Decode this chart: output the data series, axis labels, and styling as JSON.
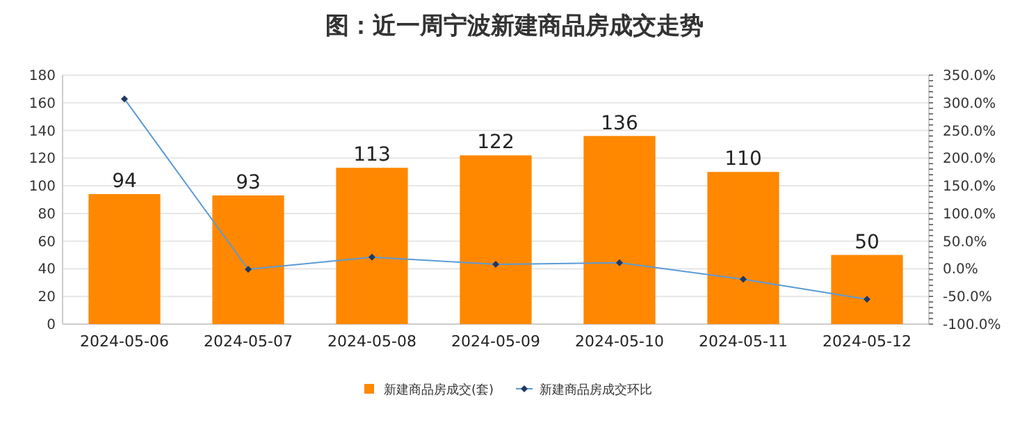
{
  "chart_data": {
    "type": "bar",
    "title": "图：近一周宁波新建商品房成交走势",
    "categories": [
      "2024-05-06",
      "2024-05-07",
      "2024-05-08",
      "2024-05-09",
      "2024-05-10",
      "2024-05-11",
      "2024-05-12"
    ],
    "series": [
      {
        "name": "新建商品房成交(套)",
        "color": "#ff8800",
        "values": [
          94,
          93,
          113,
          122,
          136,
          110,
          50
        ],
        "value_labels": [
          "94",
          "93",
          "113",
          "122",
          "136",
          "110",
          "50"
        ]
      },
      {
        "name": "新建商品房成交环比",
        "type": "line",
        "axis": "y2",
        "color": "#5b9bd5",
        "marker": "diamond",
        "values": [
          307,
          -1,
          21,
          8,
          11,
          -19,
          -55
        ]
      }
    ],
    "ylim": [
      0,
      180
    ],
    "yticks": [
      0,
      20,
      40,
      60,
      80,
      100,
      120,
      140,
      160,
      180
    ],
    "y2lim": [
      -100,
      350
    ],
    "y2ticks": [
      {
        "value": -100,
        "label": "-100.0%"
      },
      {
        "value": -50,
        "label": "-50.0%"
      },
      {
        "value": 0,
        "label": "0.0%"
      },
      {
        "value": 50,
        "label": "50.0%"
      },
      {
        "value": 100,
        "label": "100.0%"
      },
      {
        "value": 150,
        "label": "150.0%"
      },
      {
        "value": 200,
        "label": "200.0%"
      },
      {
        "value": 250,
        "label": "250.0%"
      },
      {
        "value": 300,
        "label": "300.0%"
      },
      {
        "value": 350,
        "label": "350.0%"
      }
    ],
    "grid": "y",
    "legend": "bottom"
  }
}
